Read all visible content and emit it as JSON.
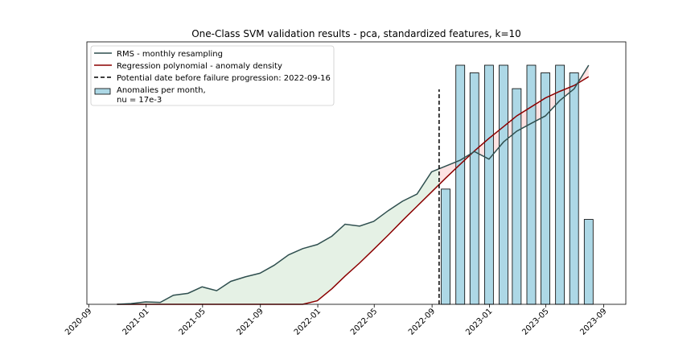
{
  "chart_data": {
    "type": "line",
    "title": "One-Class SVM validation results - pca, standardized features, k=10",
    "xlabel": "",
    "ylabel": "",
    "x_ticks": [
      "2020-09",
      "2021-01",
      "2021-05",
      "2021-09",
      "2022-01",
      "2022-05",
      "2022-09",
      "2023-01",
      "2023-05",
      "2023-09"
    ],
    "y_ticks_shown": false,
    "xlim": [
      "2020-08-28",
      "2023-10-18"
    ],
    "ylim": [
      0,
      100
    ],
    "legend_position": "top-left",
    "failure_date": "2022-09-16",
    "series": [
      {
        "name": "RMS - monthly resampling",
        "kind": "line",
        "color": "#2f4f4f",
        "x": [
          "2020-10-31",
          "2020-11-30",
          "2020-12-31",
          "2021-01-31",
          "2021-02-28",
          "2021-03-31",
          "2021-04-30",
          "2021-05-31",
          "2021-06-30",
          "2021-07-31",
          "2021-08-31",
          "2021-09-30",
          "2021-10-31",
          "2021-11-30",
          "2021-12-31",
          "2022-01-31",
          "2022-02-28",
          "2022-03-31",
          "2022-04-30",
          "2022-05-31",
          "2022-06-30",
          "2022-07-31",
          "2022-08-31",
          "2022-09-30",
          "2022-10-31",
          "2022-11-30",
          "2022-12-31",
          "2023-01-31",
          "2023-02-28",
          "2023-03-31",
          "2023-04-30",
          "2023-05-31",
          "2023-06-30",
          "2023-07-31"
        ],
        "values": [
          0.0,
          0.3,
          1.0,
          0.8,
          3.8,
          4.6,
          7.3,
          5.7,
          9.6,
          11.5,
          13.0,
          16.3,
          20.7,
          23.3,
          25.0,
          28.5,
          33.5,
          32.7,
          34.7,
          39.2,
          43.1,
          46.1,
          55.4,
          57.8,
          60.3,
          63.9,
          60.7,
          67.9,
          72.4,
          75.7,
          78.8,
          85.3,
          90.1,
          100.0
        ]
      },
      {
        "name": "Regression polynomial - anomaly density",
        "kind": "line",
        "color": "#8b0000",
        "x": [
          "2020-10-31",
          "2020-11-30",
          "2020-12-31",
          "2021-01-31",
          "2021-02-28",
          "2021-03-31",
          "2021-04-30",
          "2021-05-31",
          "2021-06-30",
          "2021-07-31",
          "2021-08-31",
          "2021-09-30",
          "2021-10-31",
          "2021-11-30",
          "2021-12-31",
          "2022-01-31",
          "2022-02-28",
          "2022-03-31",
          "2022-04-30",
          "2022-05-31",
          "2022-06-30",
          "2022-07-31",
          "2022-08-31",
          "2022-09-30",
          "2022-10-31",
          "2022-11-30",
          "2022-12-31",
          "2023-01-31",
          "2023-02-28",
          "2023-03-31",
          "2023-04-30",
          "2023-05-31",
          "2023-06-30",
          "2023-07-31"
        ],
        "values": [
          0.0,
          0.0,
          0.0,
          0.0,
          0.0,
          0.0,
          0.0,
          0.0,
          0.0,
          0.0,
          0.0,
          0.0,
          0.0,
          0.0,
          1.5,
          6.5,
          11.8,
          17.3,
          23.0,
          29.0,
          35.0,
          41.0,
          47.0,
          52.8,
          58.6,
          64.1,
          69.4,
          74.3,
          78.8,
          82.6,
          86.3,
          89.1,
          91.5,
          95.2
        ]
      },
      {
        "name": "Anomalies per month,\nnu = 17e-3",
        "kind": "bar",
        "color": "#add8e6",
        "x": [
          "2022-09-30",
          "2022-10-31",
          "2022-11-30",
          "2022-12-31",
          "2023-01-31",
          "2023-02-28",
          "2023-03-31",
          "2023-04-30",
          "2023-05-31",
          "2023-06-30",
          "2023-07-31"
        ],
        "values": [
          48.2,
          100.0,
          96.8,
          100.0,
          100.0,
          90.2,
          100.0,
          96.8,
          100.0,
          96.8,
          35.5
        ]
      }
    ],
    "legend": [
      {
        "label": "RMS - monthly resampling",
        "kind": "line",
        "color": "#2f4f4f"
      },
      {
        "label": "Regression polynomial - anomaly density",
        "kind": "line",
        "color": "#8b0000"
      },
      {
        "label": "Potential date before failure progression: 2022-09-16",
        "kind": "dashed",
        "color": "#000000"
      },
      {
        "label": "Anomalies per month,\nnu = 17e-3",
        "kind": "bar",
        "color": "#add8e6"
      }
    ],
    "colors": {
      "pre_failure_fill": "#e5f1e5",
      "post_failure_fill": "#fde3e3",
      "bar_edge": "#000000"
    }
  }
}
